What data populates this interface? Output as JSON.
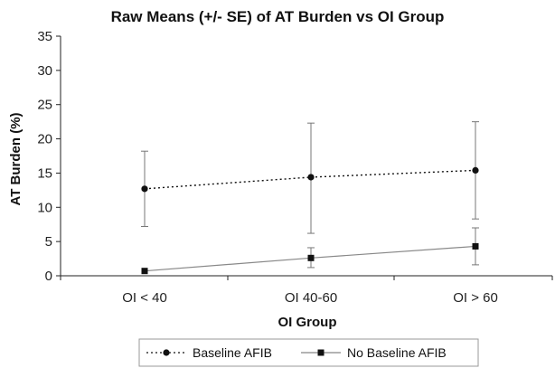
{
  "chart_data": {
    "type": "line",
    "title": "Raw Means (+/- SE) of AT Burden vs OI Group",
    "xlabel": "OI Group",
    "ylabel": "AT Burden (%)",
    "categories": [
      "OI < 40",
      "OI 40-60",
      "OI > 60"
    ],
    "ylim": [
      0,
      35
    ],
    "yticks": [
      0,
      5,
      10,
      15,
      20,
      25,
      30,
      35
    ],
    "grid": false,
    "legend_position": "bottom",
    "series": [
      {
        "name": "Baseline AFIB",
        "line_style": "dotted",
        "marker": "circle",
        "color": "#111111",
        "values": [
          12.7,
          14.4,
          15.4
        ],
        "error_low": [
          7.2,
          6.2,
          8.3
        ],
        "error_high": [
          18.2,
          22.3,
          22.5
        ]
      },
      {
        "name": "No Baseline AFIB",
        "line_style": "solid",
        "marker": "square",
        "color": "#111111",
        "values": [
          0.7,
          2.6,
          4.3
        ],
        "error_low": [
          0.7,
          1.2,
          1.6
        ],
        "error_high": [
          0.7,
          4.1,
          7.0
        ]
      }
    ]
  }
}
